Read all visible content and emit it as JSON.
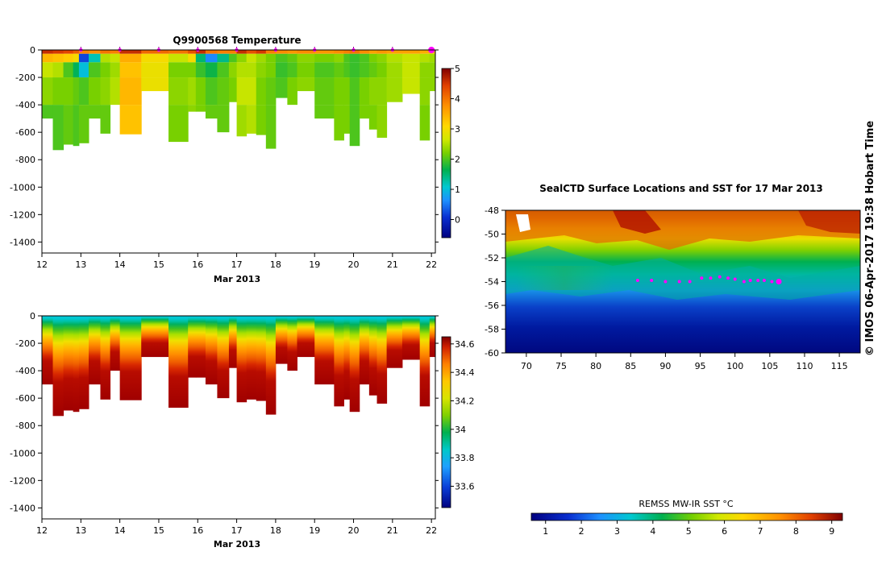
{
  "chart_data": [
    {
      "type": "heatmap",
      "id": "temperature",
      "title": "Q9900568  Temperature",
      "xlabel": "Mar 2013",
      "xlim": [
        12,
        22.1
      ],
      "x_ticks": [
        "12",
        "13",
        "14",
        "15",
        "16",
        "17",
        "18",
        "19",
        "20",
        "21",
        "22"
      ],
      "ylim": [
        -1480,
        0
      ],
      "y_ticks": [
        "0",
        "-200",
        "-400",
        "-600",
        "-800",
        "-1000",
        "-1200",
        "-1400"
      ],
      "colorbar": {
        "min": -0.6,
        "max": 5,
        "ticks": [
          "5",
          "4",
          "3",
          "2",
          "1",
          "0"
        ]
      },
      "profile_markers": [
        13,
        14,
        15,
        16,
        17,
        18,
        19,
        20,
        21,
        22
      ],
      "profiles": [
        {
          "t": 12.0,
          "depth": 500,
          "values": [
            4.6,
            3.4,
            2.6,
            2.3,
            2.0
          ]
        },
        {
          "t": 12.28,
          "depth": 730,
          "values": [
            4.5,
            3.3,
            2.5,
            2.2,
            2.0
          ]
        },
        {
          "t": 12.55,
          "depth": 690,
          "values": [
            4.4,
            3.2,
            2.0,
            2.2,
            2.1
          ]
        },
        {
          "t": 12.8,
          "depth": 700,
          "values": [
            4.2,
            3.0,
            1.6,
            2.1,
            2.0
          ]
        },
        {
          "t": 12.95,
          "depth": 680,
          "values": [
            3.9,
            0.2,
            1.0,
            2.0,
            2.1
          ]
        },
        {
          "t": 13.2,
          "depth": 500,
          "values": [
            3.8,
            1.2,
            2.0,
            2.2,
            2.1
          ]
        },
        {
          "t": 13.5,
          "depth": 610,
          "values": [
            4.0,
            2.5,
            2.2,
            2.3,
            2.1
          ]
        },
        {
          "t": 13.75,
          "depth": 400,
          "values": [
            3.9,
            2.6,
            2.4,
            2.5,
            2.4
          ]
        },
        {
          "t": 14.0,
          "depth": 615,
          "values": [
            4.6,
            3.5,
            3.3,
            3.4,
            3.3
          ]
        },
        {
          "t": 14.55,
          "depth": 300,
          "values": [
            4.1,
            3.0,
            2.9,
            2.9,
            2.8
          ]
        },
        {
          "t": 15.25,
          "depth": 670,
          "values": [
            4.0,
            2.6,
            2.2,
            2.3,
            2.2
          ]
        },
        {
          "t": 15.75,
          "depth": 450,
          "values": [
            4.3,
            3.0,
            2.2,
            2.4,
            2.3
          ]
        },
        {
          "t": 15.95,
          "depth": 450,
          "values": [
            4.6,
            1.5,
            1.9,
            2.2,
            2.2
          ]
        },
        {
          "t": 16.2,
          "depth": 500,
          "values": [
            4.0,
            0.6,
            1.7,
            2.0,
            2.1
          ]
        },
        {
          "t": 16.5,
          "depth": 600,
          "values": [
            3.9,
            1.4,
            2.0,
            2.1,
            2.1
          ]
        },
        {
          "t": 16.8,
          "depth": 380,
          "values": [
            3.9,
            2.0,
            2.3,
            2.2,
            2.2
          ]
        },
        {
          "t": 17.0,
          "depth": 630,
          "values": [
            4.6,
            2.3,
            2.5,
            2.6,
            2.4
          ]
        },
        {
          "t": 17.25,
          "depth": 610,
          "values": [
            4.3,
            2.6,
            2.5,
            2.6,
            2.5
          ]
        },
        {
          "t": 17.5,
          "depth": 620,
          "values": [
            4.5,
            2.4,
            2.3,
            2.2,
            2.2
          ]
        },
        {
          "t": 17.75,
          "depth": 720,
          "values": [
            3.9,
            2.2,
            2.2,
            2.1,
            2.1
          ]
        },
        {
          "t": 18.0,
          "depth": 350,
          "values": [
            3.8,
            2.0,
            1.9,
            2.0,
            2.0
          ]
        },
        {
          "t": 18.3,
          "depth": 400,
          "values": [
            3.7,
            2.1,
            2.0,
            2.2,
            2.1
          ]
        },
        {
          "t": 18.55,
          "depth": 300,
          "values": [
            3.8,
            2.3,
            2.2,
            2.3,
            2.2
          ]
        },
        {
          "t": 19.0,
          "depth": 500,
          "values": [
            3.7,
            2.2,
            2.0,
            2.1,
            2.1
          ]
        },
        {
          "t": 19.5,
          "depth": 660,
          "values": [
            3.8,
            2.3,
            2.1,
            2.2,
            2.2
          ]
        },
        {
          "t": 19.75,
          "depth": 610,
          "values": [
            3.9,
            2.0,
            2.0,
            2.2,
            2.2
          ]
        },
        {
          "t": 19.9,
          "depth": 700,
          "values": [
            4.0,
            1.9,
            1.9,
            2.0,
            2.0
          ]
        },
        {
          "t": 20.15,
          "depth": 500,
          "values": [
            3.8,
            2.0,
            2.0,
            2.2,
            2.2
          ]
        },
        {
          "t": 20.4,
          "depth": 580,
          "values": [
            3.6,
            2.2,
            2.1,
            2.3,
            2.2
          ]
        },
        {
          "t": 20.6,
          "depth": 640,
          "values": [
            3.7,
            2.3,
            2.2,
            2.3,
            2.3
          ]
        },
        {
          "t": 20.85,
          "depth": 380,
          "values": [
            3.6,
            2.5,
            2.4,
            2.4,
            2.4
          ]
        },
        {
          "t": 21.25,
          "depth": 320,
          "values": [
            3.6,
            2.6,
            2.6,
            2.6,
            2.6
          ]
        },
        {
          "t": 21.7,
          "depth": 660,
          "values": [
            3.5,
            2.5,
            2.3,
            2.3,
            2.2
          ]
        },
        {
          "t": 21.95,
          "depth": 300,
          "values": [
            3.4,
            2.4,
            2.3,
            2.3,
            2.3
          ]
        }
      ]
    },
    {
      "type": "heatmap",
      "id": "salinity",
      "title": "",
      "xlabel": "Mar 2013",
      "xlim": [
        12,
        22.1
      ],
      "x_ticks": [
        "12",
        "13",
        "14",
        "15",
        "16",
        "17",
        "18",
        "19",
        "20",
        "21",
        "22"
      ],
      "ylim": [
        -1480,
        0
      ],
      "y_ticks": [
        "0",
        "-200",
        "-400",
        "-600",
        "-800",
        "-1000",
        "-1200",
        "-1400"
      ],
      "colorbar": {
        "min": 33.45,
        "max": 34.65,
        "ticks": [
          "34.6",
          "34.4",
          "34.2",
          "34",
          "33.8",
          "33.6"
        ]
      }
    },
    {
      "type": "heatmap",
      "id": "sst_map",
      "title": "SealCTD Surface Locations and SST for 17 Mar 2013",
      "xlim": [
        67,
        118
      ],
      "ylim": [
        -60,
        -48
      ],
      "x_ticks": [
        "70",
        "75",
        "80",
        "85",
        "90",
        "95",
        "100",
        "105",
        "110",
        "115"
      ],
      "y_ticks": [
        "-48",
        "-50",
        "-52",
        "-54",
        "-56",
        "-58",
        "-60"
      ],
      "colorbar": {
        "label": "REMSS MW-IR SST °C",
        "min": 0.6,
        "max": 9.3,
        "ticks": [
          "1",
          "2",
          "3",
          "4",
          "5",
          "6",
          "7",
          "8",
          "9"
        ]
      },
      "surface_locations": [
        {
          "lon": 86.0,
          "lat": -53.9
        },
        {
          "lon": 88.0,
          "lat": -53.9
        },
        {
          "lon": 90.0,
          "lat": -54.0
        },
        {
          "lon": 92.0,
          "lat": -54.0
        },
        {
          "lon": 93.5,
          "lat": -54.0
        },
        {
          "lon": 95.2,
          "lat": -53.7
        },
        {
          "lon": 96.5,
          "lat": -53.7
        },
        {
          "lon": 97.8,
          "lat": -53.6
        },
        {
          "lon": 99.0,
          "lat": -53.7
        },
        {
          "lon": 100.0,
          "lat": -53.8
        },
        {
          "lon": 101.3,
          "lat": -54.0
        },
        {
          "lon": 102.2,
          "lat": -53.9
        },
        {
          "lon": 103.3,
          "lat": -53.9
        },
        {
          "lon": 104.2,
          "lat": -53.9
        },
        {
          "lon": 105.3,
          "lat": -54.0
        },
        {
          "lon": 106.3,
          "lat": -54.0
        }
      ]
    }
  ],
  "credit": "© IMOS 06-Apr-2017 19:38 Hobart Time"
}
